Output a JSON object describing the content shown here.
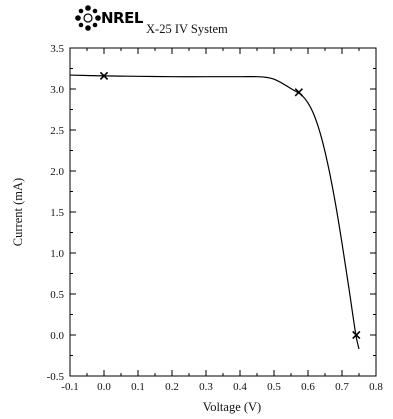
{
  "header": {
    "logo_text": "NREL",
    "system_label": "X-25 IV System"
  },
  "chart_data": {
    "type": "line",
    "title": "",
    "xlabel": "Voltage (V)",
    "ylabel": "Current (mA)",
    "xlim": [
      -0.1,
      0.8
    ],
    "ylim": [
      -0.5,
      3.5
    ],
    "x_ticks": [
      "-0.1",
      "0.0",
      "0.1",
      "0.2",
      "0.3",
      "0.4",
      "0.5",
      "0.6",
      "0.7",
      "0.8"
    ],
    "y_ticks": [
      "-0.5",
      "0.0",
      "0.5",
      "1.0",
      "1.5",
      "2.0",
      "2.5",
      "3.0",
      "3.5"
    ],
    "grid": false,
    "series": [
      {
        "x": [
          -0.1,
          0.0,
          0.1,
          0.2,
          0.3,
          0.4,
          0.45,
          0.48,
          0.5,
          0.52,
          0.54,
          0.56,
          0.58,
          0.6,
          0.62,
          0.64,
          0.66,
          0.68,
          0.7,
          0.72,
          0.74,
          0.75
        ],
        "y": [
          3.17,
          3.16,
          3.155,
          3.15,
          3.15,
          3.15,
          3.15,
          3.14,
          3.12,
          3.08,
          3.03,
          2.98,
          2.93,
          2.83,
          2.66,
          2.4,
          2.05,
          1.62,
          1.12,
          0.58,
          0.02,
          -0.17
        ]
      }
    ],
    "markers": [
      {
        "x": 0.0,
        "y": 3.16
      },
      {
        "x": 0.573,
        "y": 2.96
      },
      {
        "x": 0.742,
        "y": 0.0
      }
    ]
  }
}
